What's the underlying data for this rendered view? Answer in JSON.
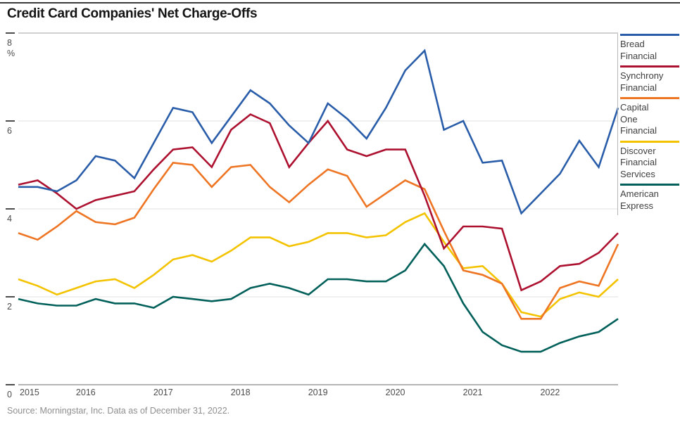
{
  "page": {
    "title": "Credit Card Companies' Net Charge-Offs",
    "source": "Source: Morningstar, Inc. Data as of December 31, 2022."
  },
  "chart_data": {
    "type": "line",
    "title": "Credit Card Companies' Net Charge-Offs",
    "unit_label": "%",
    "ylim": [
      0,
      8
    ],
    "yticks": [
      0,
      2,
      4,
      6,
      8
    ],
    "x_years": [
      2015,
      2016,
      2017,
      2018,
      2019,
      2020,
      2021,
      2022
    ],
    "quarters_per_year": 4,
    "x_range_note": "quarterly, 2015Q1 through 2022Q4",
    "grid": "horizontal",
    "legend_position": "right",
    "axis_colors": {
      "grid_light": "#e7e7e7",
      "grid_top": "#b5b5b5",
      "axis_zero": "#9c9c9c",
      "tick": "#4c4c4c",
      "label": "#4c4c4c"
    },
    "series": [
      {
        "name": "Bread Financial",
        "color": "#2a5da9",
        "values": [
          4.5,
          4.5,
          4.4,
          4.65,
          5.2,
          5.1,
          4.7,
          5.5,
          6.3,
          6.2,
          5.5,
          6.1,
          6.7,
          6.4,
          5.9,
          5.5,
          6.4,
          6.05,
          5.6,
          6.3,
          7.15,
          7.6,
          5.8,
          6.0,
          5.05,
          5.1,
          3.9,
          4.35,
          4.8,
          5.55,
          4.95,
          6.3
        ]
      },
      {
        "name": "Synchrony Financial",
        "color": "#ad1130",
        "values": [
          4.55,
          4.65,
          4.35,
          4.0,
          4.2,
          4.3,
          4.4,
          4.9,
          5.35,
          5.4,
          4.95,
          5.8,
          6.15,
          5.95,
          4.95,
          5.5,
          6.0,
          5.35,
          5.2,
          5.35,
          5.35,
          4.3,
          3.1,
          3.6,
          3.6,
          3.55,
          2.15,
          2.35,
          2.7,
          2.75,
          3.0,
          3.45
        ]
      },
      {
        "name": "Capital One Financial",
        "color": "#ee7523",
        "values": [
          3.45,
          3.3,
          3.6,
          3.95,
          3.7,
          3.65,
          3.8,
          4.45,
          5.05,
          5.0,
          4.5,
          4.95,
          5.0,
          4.5,
          4.15,
          4.55,
          4.9,
          4.75,
          4.05,
          4.35,
          4.65,
          4.45,
          3.5,
          2.6,
          2.5,
          2.3,
          1.5,
          1.5,
          2.2,
          2.35,
          2.25,
          3.2
        ]
      },
      {
        "name": "Discover Financial Services",
        "color": "#f3c300",
        "values": [
          2.4,
          2.25,
          2.05,
          2.2,
          2.35,
          2.4,
          2.2,
          2.5,
          2.85,
          2.95,
          2.8,
          3.05,
          3.35,
          3.35,
          3.15,
          3.25,
          3.45,
          3.45,
          3.35,
          3.4,
          3.7,
          3.9,
          3.25,
          2.65,
          2.7,
          2.3,
          1.65,
          1.55,
          1.95,
          2.1,
          2.0,
          2.4
        ]
      },
      {
        "name": "American Express",
        "color": "#02605a",
        "values": [
          1.95,
          1.85,
          1.8,
          1.8,
          1.95,
          1.85,
          1.85,
          1.75,
          2.0,
          1.95,
          1.9,
          1.95,
          2.2,
          2.3,
          2.2,
          2.05,
          2.4,
          2.4,
          2.35,
          2.35,
          2.6,
          3.2,
          2.7,
          1.85,
          1.2,
          0.9,
          0.75,
          0.75,
          0.95,
          1.1,
          1.2,
          1.5
        ]
      }
    ]
  }
}
